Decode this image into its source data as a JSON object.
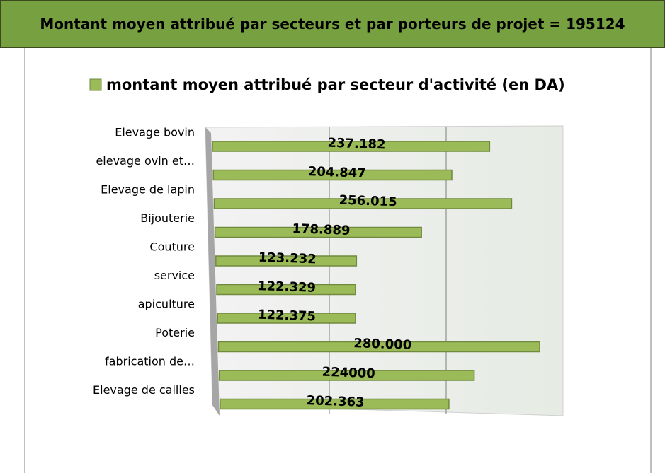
{
  "header": {
    "title": "Montant moyen attribué par secteurs et par porteurs de projet = 195124"
  },
  "chart_data": {
    "type": "bar",
    "orientation": "horizontal",
    "categories": [
      "Elevage bovin",
      "elevage ovin et…",
      "Elevage de lapin",
      "Bijouterie",
      "Couture",
      "service",
      "apiculture",
      "Poterie",
      "fabrication de…",
      "Elevage de cailles"
    ],
    "series": [
      {
        "name": "montant moyen attribué par secteur d'activité (en DA)",
        "color": "#9bbb59",
        "values": [
          237182,
          204847,
          256015,
          178889,
          123232,
          122329,
          122375,
          280000,
          224000,
          202363
        ],
        "value_labels": [
          "237.182",
          "204.847",
          "256.015",
          "178.889",
          "123.232",
          "122.329",
          "122.375",
          "280.000",
          "224000",
          "202.363"
        ]
      }
    ],
    "xlim": [
      0,
      300000
    ],
    "xticks": [
      0,
      100000,
      200000,
      300000
    ],
    "grid": true
  }
}
